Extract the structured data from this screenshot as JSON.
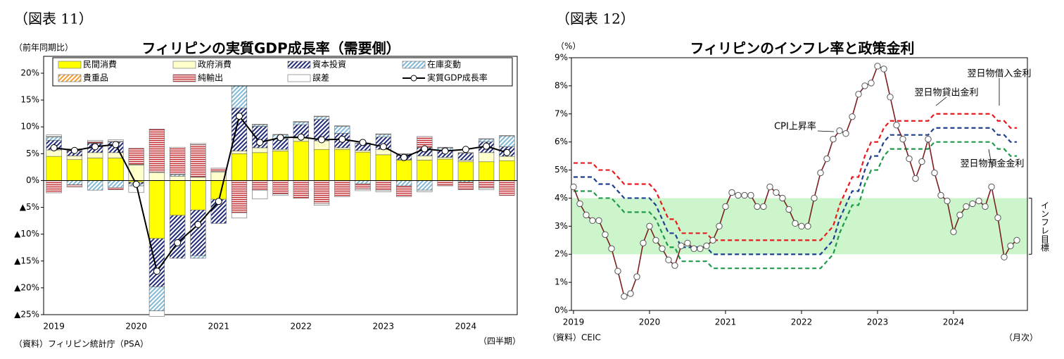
{
  "chart_data": [
    {
      "type": "bar",
      "stacked": true,
      "header": "（図表 11）",
      "title": "フィリピンの実質GDP成長率（需要側）",
      "unit_label": "（前年同期比）",
      "source": "（資料）フィリピン統計庁（PSA）",
      "x_unit": "（四半期）",
      "categories": [
        "2019",
        null,
        null,
        null,
        "2020",
        null,
        null,
        null,
        "2021",
        null,
        null,
        null,
        "2022",
        null,
        null,
        null,
        "2023",
        null,
        null,
        null,
        "2024",
        null,
        null
      ],
      "ylim": [
        -25,
        20
      ],
      "yticks": [
        {
          "value": 20,
          "label": "20%"
        },
        {
          "value": 15,
          "label": "15%"
        },
        {
          "value": 10,
          "label": "10%"
        },
        {
          "value": 5,
          "label": "5%"
        },
        {
          "value": 0,
          "label": "0%"
        },
        {
          "value": -5,
          "label": "▲5%"
        },
        {
          "value": -10,
          "label": "▲10%"
        },
        {
          "value": -15,
          "label": "▲15%"
        },
        {
          "value": -20,
          "label": "▲20%"
        },
        {
          "value": -25,
          "label": "▲25%"
        }
      ],
      "series": [
        {
          "name": "民間消費",
          "color": "#ffff00",
          "pattern": "solid",
          "values": [
            4.5,
            3.9,
            4.2,
            4.2,
            -0.3,
            -10.8,
            -6.5,
            -5.5,
            -3.5,
            5.0,
            5.2,
            5.5,
            7.3,
            5.8,
            5.8,
            5.3,
            4.8,
            3.8,
            3.8,
            4.0,
            3.5,
            3.5,
            3.7
          ]
        },
        {
          "name": "政府消費",
          "color": "#ffffcc",
          "pattern": "solid",
          "values": [
            1.2,
            0.7,
            1.0,
            1.0,
            2.9,
            1.5,
            0.8,
            0.6,
            1.6,
            0.5,
            0.9,
            0.3,
            0.6,
            1.6,
            0.3,
            0.3,
            1.0,
            0.1,
            0.8,
            0.3,
            0.3,
            1.7,
            0.8
          ]
        },
        {
          "name": "資本投資",
          "color": "#1f2a7a",
          "pattern": "diagonal",
          "values": [
            1.8,
            0.9,
            1.7,
            2.0,
            -0.3,
            -9.0,
            -8.0,
            -8.5,
            -4.5,
            8.0,
            4.0,
            2.0,
            2.5,
            4.0,
            2.7,
            1.3,
            2.3,
            1.0,
            1.5,
            1.3,
            1.3,
            2.0,
            1.8
          ]
        },
        {
          "name": "在庫変動",
          "color": "#7fb8d8",
          "pattern": "diagonal",
          "values": [
            0.6,
            -0.8,
            -1.8,
            -1.3,
            -0.4,
            -4.5,
            0.3,
            -0.5,
            0.0,
            5.0,
            0.3,
            0.7,
            0.5,
            0.5,
            1.3,
            -0.6,
            0.5,
            -1.0,
            -1.8,
            0.5,
            -0.3,
            0.5,
            2.0
          ]
        },
        {
          "name": "貴重品",
          "color": "#f0a030",
          "pattern": "diagonal",
          "values": [
            0.1,
            0.1,
            0.1,
            0.1,
            0.1,
            0.1,
            0.1,
            0.1,
            0.1,
            0.1,
            0.1,
            0.1,
            0.1,
            0.1,
            0.1,
            0.1,
            0.1,
            0.1,
            0.1,
            0.1,
            0.1,
            0.1,
            0.1
          ]
        },
        {
          "name": "純輸出",
          "color": "#c0282d",
          "pattern": "horizontal",
          "values": [
            -2.3,
            -0.4,
            0.2,
            -0.4,
            3.0,
            8.0,
            5.0,
            6.0,
            0.6,
            -6.0,
            -1.8,
            -2.5,
            -3.3,
            -4.3,
            -3.0,
            -1.0,
            -1.8,
            -2.0,
            2.0,
            -1.0,
            -1.4,
            -1.4,
            -2.8
          ]
        },
        {
          "name": "誤差",
          "color": "#ffffff",
          "pattern": "solid",
          "values": [
            0.3,
            0.3,
            0.3,
            0.3,
            -1.2,
            -1.0,
            0.0,
            0.2,
            0.0,
            -1.0,
            -1.6,
            -0.3,
            0.0,
            -0.3,
            0.0,
            -0.3,
            -0.3,
            0.0,
            -0.3,
            0.0,
            0.0,
            -0.3,
            0.0
          ]
        }
      ],
      "line": {
        "name": "実質GDP成長率",
        "color": "#000000",
        "values": [
          6.1,
          5.6,
          6.3,
          6.7,
          -0.7,
          -16.9,
          -11.6,
          -8.2,
          -3.9,
          12.0,
          7.1,
          8.0,
          8.1,
          7.6,
          7.7,
          7.1,
          6.3,
          4.3,
          5.9,
          5.5,
          5.8,
          6.4,
          5.2
        ]
      }
    },
    {
      "type": "line",
      "header": "（図表 12）",
      "title": "フィリピンのインフレ率と政策金利",
      "y_unit": "（%）",
      "source": "（資料）CEIC",
      "x_unit": "（月次）",
      "band_label": "インフレ目標",
      "target_band": [
        2,
        4
      ],
      "band_color": "#ccf5cc",
      "categories": [
        "2019",
        null,
        null,
        null,
        null,
        null,
        null,
        null,
        null,
        null,
        null,
        null,
        "2020",
        null,
        null,
        null,
        null,
        null,
        null,
        null,
        null,
        null,
        null,
        null,
        "2021",
        null,
        null,
        null,
        null,
        null,
        null,
        null,
        null,
        null,
        null,
        null,
        "2022",
        null,
        null,
        null,
        null,
        null,
        null,
        null,
        null,
        null,
        null,
        null,
        "2023",
        null,
        null,
        null,
        null,
        null,
        null,
        null,
        null,
        null,
        null,
        null,
        "2024",
        null,
        null,
        null,
        null,
        null,
        null,
        null,
        null,
        null,
        null
      ],
      "ylim": [
        0,
        9
      ],
      "yticks": [
        {
          "value": 0,
          "label": "0%"
        },
        {
          "value": 1,
          "label": "1%"
        },
        {
          "value": 2,
          "label": "2%"
        },
        {
          "value": 3,
          "label": "3%"
        },
        {
          "value": 4,
          "label": "4%"
        },
        {
          "value": 5,
          "label": "5%"
        },
        {
          "value": 6,
          "label": "6%"
        },
        {
          "value": 7,
          "label": "7%"
        },
        {
          "value": 8,
          "label": "8%"
        },
        {
          "value": 9,
          "label": "9%"
        }
      ],
      "series": [
        {
          "name": "CPI上昇率",
          "color": "#7b1f1f",
          "markers": true,
          "dashed": false,
          "values": [
            4.4,
            3.8,
            3.4,
            3.2,
            3.2,
            2.7,
            2.2,
            1.4,
            0.5,
            0.6,
            1.2,
            2.4,
            3.0,
            2.5,
            2.2,
            1.8,
            1.6,
            2.3,
            2.4,
            2.2,
            2.2,
            2.3,
            2.5,
            3.0,
            3.7,
            4.2,
            4.1,
            4.1,
            4.1,
            3.7,
            3.7,
            4.4,
            4.2,
            4.0,
            3.6,
            3.1,
            3.0,
            3.0,
            4.0,
            4.9,
            5.4,
            6.1,
            6.4,
            6.3,
            6.9,
            7.7,
            8.0,
            8.1,
            8.7,
            8.6,
            7.6,
            6.6,
            6.1,
            5.4,
            4.7,
            5.3,
            6.1,
            4.9,
            4.1,
            3.9,
            2.8,
            3.4,
            3.7,
            3.8,
            3.9,
            3.7,
            4.4,
            3.3,
            1.9,
            2.3,
            2.5
          ]
        },
        {
          "name": "翌日物貸出金利",
          "color": "#e8191e",
          "markers": false,
          "dashed": true,
          "values": [
            5.25,
            5.25,
            5.25,
            5.25,
            5.0,
            5.0,
            5.0,
            4.75,
            4.5,
            4.5,
            4.5,
            4.5,
            4.5,
            4.25,
            3.75,
            3.25,
            3.25,
            2.75,
            2.75,
            2.75,
            2.75,
            2.75,
            2.5,
            2.5,
            2.5,
            2.5,
            2.5,
            2.5,
            2.5,
            2.5,
            2.5,
            2.5,
            2.5,
            2.5,
            2.5,
            2.5,
            2.5,
            2.5,
            2.5,
            2.5,
            2.75,
            3.0,
            3.75,
            4.25,
            4.75,
            4.75,
            5.5,
            6.0,
            6.0,
            6.5,
            6.75,
            6.75,
            6.75,
            6.75,
            6.75,
            6.75,
            6.75,
            7.0,
            7.0,
            7.0,
            7.0,
            7.0,
            7.0,
            7.0,
            7.0,
            7.0,
            7.0,
            6.75,
            6.75,
            6.5,
            6.5
          ]
        },
        {
          "name": "翌日物借入金利",
          "color": "#1f3f8f",
          "markers": false,
          "dashed": true,
          "values": [
            4.75,
            4.75,
            4.75,
            4.75,
            4.5,
            4.5,
            4.5,
            4.25,
            4.0,
            4.0,
            4.0,
            4.0,
            4.0,
            3.75,
            3.25,
            2.75,
            2.75,
            2.25,
            2.25,
            2.25,
            2.25,
            2.25,
            2.0,
            2.0,
            2.0,
            2.0,
            2.0,
            2.0,
            2.0,
            2.0,
            2.0,
            2.0,
            2.0,
            2.0,
            2.0,
            2.0,
            2.0,
            2.0,
            2.0,
            2.0,
            2.25,
            2.5,
            3.25,
            3.75,
            4.25,
            4.25,
            5.0,
            5.5,
            5.5,
            6.0,
            6.25,
            6.25,
            6.25,
            6.25,
            6.25,
            6.25,
            6.25,
            6.5,
            6.5,
            6.5,
            6.5,
            6.5,
            6.5,
            6.5,
            6.5,
            6.5,
            6.5,
            6.25,
            6.25,
            6.0,
            6.0
          ]
        },
        {
          "name": "翌日物預金金利",
          "color": "#1e9a4a",
          "markers": false,
          "dashed": true,
          "values": [
            4.25,
            4.25,
            4.25,
            4.25,
            4.0,
            4.0,
            4.0,
            3.75,
            3.5,
            3.5,
            3.5,
            3.5,
            3.5,
            3.25,
            2.75,
            2.25,
            2.25,
            1.75,
            1.75,
            1.75,
            1.75,
            1.75,
            1.5,
            1.5,
            1.5,
            1.5,
            1.5,
            1.5,
            1.5,
            1.5,
            1.5,
            1.5,
            1.5,
            1.5,
            1.5,
            1.5,
            1.5,
            1.5,
            1.5,
            1.5,
            1.75,
            2.0,
            2.75,
            3.25,
            3.75,
            3.75,
            4.5,
            5.0,
            5.0,
            5.5,
            5.75,
            5.75,
            5.75,
            5.75,
            5.75,
            5.75,
            5.75,
            6.0,
            6.0,
            6.0,
            6.0,
            6.0,
            6.0,
            6.0,
            6.0,
            6.0,
            6.0,
            5.75,
            5.75,
            5.5,
            5.5
          ]
        }
      ]
    }
  ]
}
